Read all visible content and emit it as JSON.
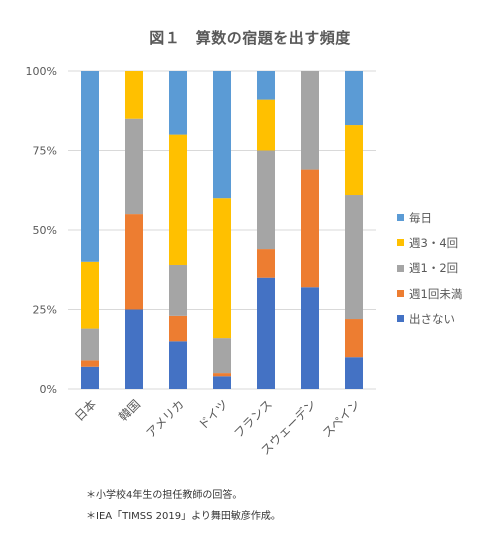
{
  "chart_data": {
    "type": "bar",
    "stacking": "percent",
    "title": "図１　算数の宿題を出す頻度",
    "categories": [
      "日本",
      "韓国",
      "アメリカ",
      "ドイツ",
      "フランス",
      "スウェーデン",
      "スペイン"
    ],
    "series": [
      {
        "name": "出さない",
        "color": "#4472C4",
        "values": [
          7,
          25,
          15,
          4,
          35,
          32,
          10
        ]
      },
      {
        "name": "週1回未満",
        "color": "#ED7D31",
        "values": [
          2,
          30,
          8,
          1,
          9,
          37,
          12
        ]
      },
      {
        "name": "週1・2回",
        "color": "#A5A5A5",
        "values": [
          10,
          30,
          16,
          11,
          31,
          31,
          39
        ]
      },
      {
        "name": "週3・4回",
        "color": "#FFC000",
        "values": [
          21,
          15,
          41,
          44,
          16,
          0,
          22
        ]
      },
      {
        "name": "毎日",
        "color": "#5B9BD5",
        "values": [
          60,
          0,
          20,
          40,
          9,
          0,
          17
        ]
      }
    ],
    "ylim": [
      0,
      100
    ],
    "yticks": [
      0,
      25,
      50,
      75,
      100
    ],
    "ytick_labels": [
      "0%",
      "25%",
      "50%",
      "75%",
      "100%"
    ],
    "grid": true,
    "gridline_color": "#D9D9D9",
    "legend_position": "right"
  },
  "notes": [
    "＊小学校4年生の担任教師の回答。",
    "＊IEA「TIMSS 2019」より舞田敏彦作成。"
  ]
}
